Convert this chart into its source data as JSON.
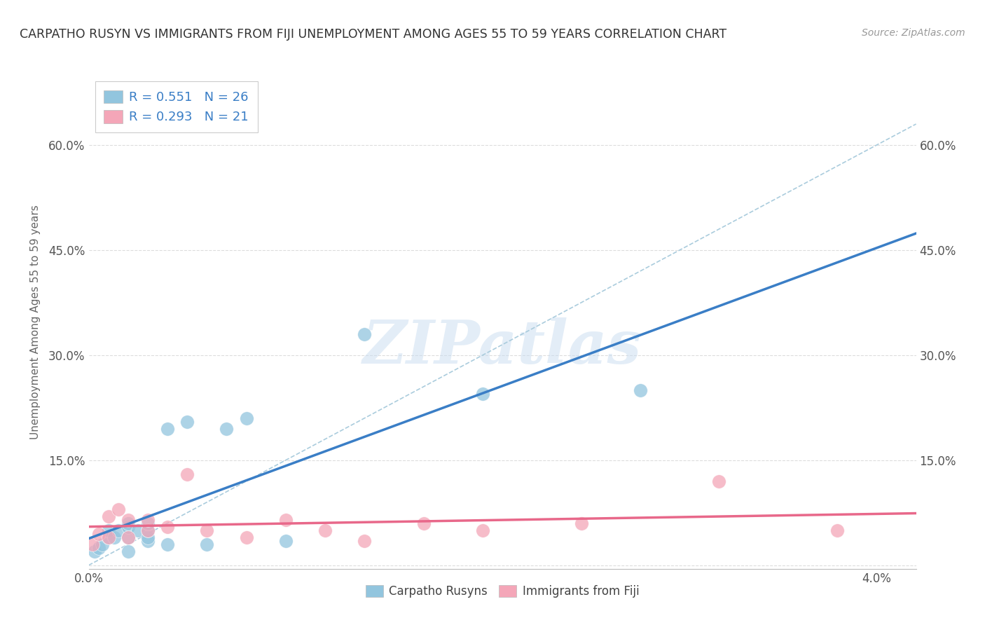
{
  "title": "CARPATHO RUSYN VS IMMIGRANTS FROM FIJI UNEMPLOYMENT AMONG AGES 55 TO 59 YEARS CORRELATION CHART",
  "source": "Source: ZipAtlas.com",
  "ylabel": "Unemployment Among Ages 55 to 59 years",
  "legend1_r": "0.551",
  "legend1_n": "26",
  "legend2_r": "0.293",
  "legend2_n": "21",
  "blue_color": "#92C5DE",
  "pink_color": "#F4A6B8",
  "blue_line_color": "#3A7EC6",
  "pink_line_color": "#E8688A",
  "legend_r_color": "#3A7EC6",
  "legend_n_color": "#3A7EC6",
  "dashed_line_color": "#AACCDD",
  "background_color": "#FFFFFF",
  "grid_color": "#DDDDDD",
  "watermark": "ZIPatlas",
  "watermark_color": "#C8DCF0",
  "blue_scatter_x": [
    0.0003,
    0.0005,
    0.0007,
    0.001,
    0.001,
    0.0013,
    0.0015,
    0.002,
    0.002,
    0.002,
    0.002,
    0.0025,
    0.003,
    0.003,
    0.003,
    0.003,
    0.004,
    0.004,
    0.005,
    0.006,
    0.007,
    0.008,
    0.01,
    0.014,
    0.02,
    0.028
  ],
  "blue_scatter_y": [
    0.02,
    0.025,
    0.03,
    0.04,
    0.05,
    0.04,
    0.05,
    0.02,
    0.04,
    0.055,
    0.06,
    0.05,
    0.035,
    0.04,
    0.05,
    0.06,
    0.03,
    0.195,
    0.205,
    0.03,
    0.195,
    0.21,
    0.035,
    0.33,
    0.245,
    0.25
  ],
  "pink_scatter_x": [
    0.0002,
    0.0005,
    0.001,
    0.001,
    0.0015,
    0.002,
    0.002,
    0.003,
    0.003,
    0.004,
    0.005,
    0.006,
    0.008,
    0.01,
    0.012,
    0.014,
    0.017,
    0.02,
    0.025,
    0.032,
    0.038
  ],
  "pink_scatter_y": [
    0.03,
    0.045,
    0.04,
    0.07,
    0.08,
    0.04,
    0.065,
    0.05,
    0.065,
    0.055,
    0.13,
    0.05,
    0.04,
    0.065,
    0.05,
    0.035,
    0.06,
    0.05,
    0.06,
    0.12,
    0.05
  ],
  "xlim": [
    0.0,
    0.042
  ],
  "ylim": [
    -0.005,
    0.7
  ],
  "y_ticks": [
    0.0,
    0.15,
    0.3,
    0.45,
    0.6
  ],
  "y_tick_labels": [
    "",
    "15.0%",
    "30.0%",
    "45.0%",
    "60.0%"
  ],
  "x_tick_labels": [
    "0.0%",
    "4.0%"
  ]
}
